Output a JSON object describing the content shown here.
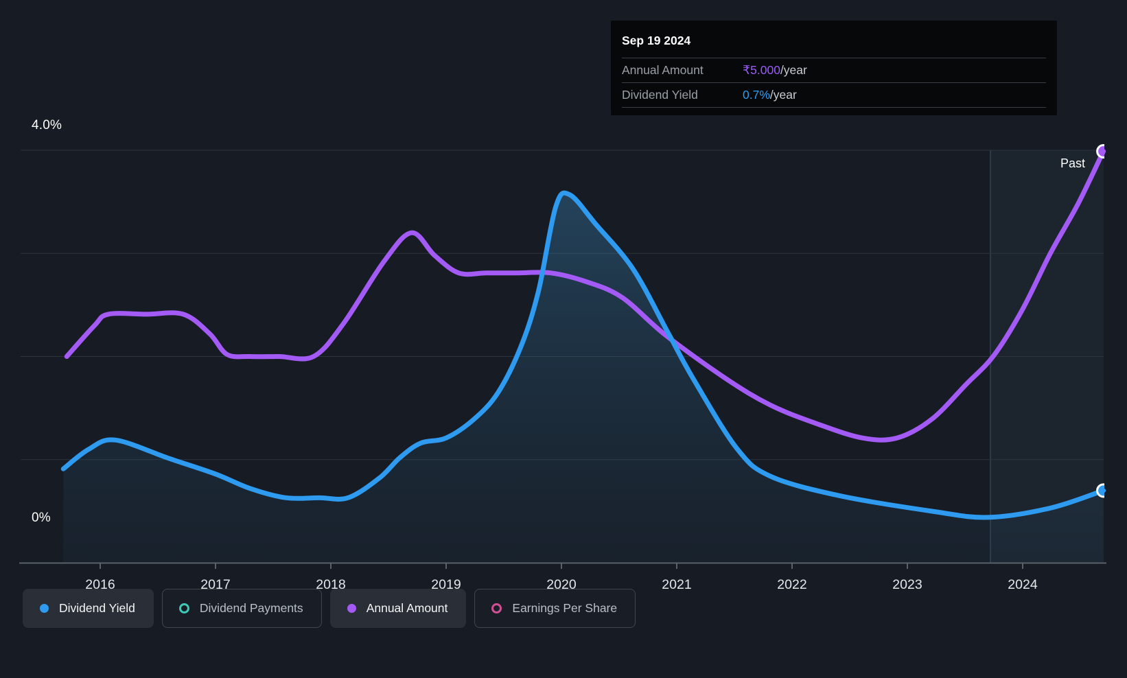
{
  "past_label": "Past",
  "tooltip": {
    "date": "Sep 19 2024",
    "rows": [
      {
        "label": "Annual Amount",
        "value": "₹5.000",
        "suffix": "/year",
        "value_color": "#9b5bff"
      },
      {
        "label": "Dividend Yield",
        "value": "0.7%",
        "suffix": "/year",
        "value_color": "#2e9bf0"
      }
    ]
  },
  "legend": {
    "items": [
      {
        "label": "Dividend Yield",
        "color": "#2e9bf0",
        "style": "filled",
        "active": true
      },
      {
        "label": "Dividend Payments",
        "color": "#3ec9b8",
        "style": "ring",
        "active": false
      },
      {
        "label": "Annual Amount",
        "color": "#a45bf5",
        "style": "filled",
        "active": true
      },
      {
        "label": "Earnings Per Share",
        "color": "#d14f94",
        "style": "ring",
        "active": false
      }
    ]
  },
  "chart_data": {
    "type": "line",
    "x_tick_labels": [
      "2016",
      "2017",
      "2018",
      "2019",
      "2020",
      "2021",
      "2022",
      "2023",
      "2024"
    ],
    "x_range": [
      2015.66,
      2024.72
    ],
    "y_axis": {
      "top_label": "4.0%",
      "bottom_label": "0%",
      "min": 0,
      "max": 4,
      "unit": "%",
      "gridline_values": [
        1,
        2,
        3,
        4
      ]
    },
    "past_band_start": 2023.72,
    "grid": true,
    "legend_position": "bottom",
    "series": [
      {
        "name": "Dividend Yield",
        "color": "#2e9bf0",
        "unit": "%",
        "area_fill": true,
        "end_marker": true,
        "latest_value": "0.7%/year",
        "points": [
          [
            2015.68,
            0.91
          ],
          [
            2015.9,
            1.1
          ],
          [
            2016.13,
            1.19
          ],
          [
            2016.6,
            1.01
          ],
          [
            2017.0,
            0.86
          ],
          [
            2017.3,
            0.72
          ],
          [
            2017.61,
            0.63
          ],
          [
            2017.9,
            0.63
          ],
          [
            2018.15,
            0.63
          ],
          [
            2018.42,
            0.82
          ],
          [
            2018.6,
            1.02
          ],
          [
            2018.78,
            1.16
          ],
          [
            2019.0,
            1.21
          ],
          [
            2019.24,
            1.39
          ],
          [
            2019.45,
            1.65
          ],
          [
            2019.65,
            2.1
          ],
          [
            2019.8,
            2.63
          ],
          [
            2019.95,
            3.45
          ],
          [
            2020.07,
            3.57
          ],
          [
            2020.3,
            3.28
          ],
          [
            2020.62,
            2.85
          ],
          [
            2020.92,
            2.24
          ],
          [
            2021.14,
            1.79
          ],
          [
            2021.52,
            1.11
          ],
          [
            2021.81,
            0.84
          ],
          [
            2022.41,
            0.65
          ],
          [
            2023.21,
            0.5
          ],
          [
            2023.7,
            0.44
          ],
          [
            2024.24,
            0.53
          ],
          [
            2024.7,
            0.7
          ]
        ]
      },
      {
        "name": "Annual Amount",
        "color": "#a45bf5",
        "unit": "chart-relative scale; latest value ₹5.000/year",
        "area_fill": false,
        "end_marker": true,
        "latest_value": "₹5.000/year",
        "points": [
          [
            2015.71,
            2.0
          ],
          [
            2015.95,
            2.3
          ],
          [
            2016.07,
            2.41
          ],
          [
            2016.4,
            2.41
          ],
          [
            2016.72,
            2.41
          ],
          [
            2016.95,
            2.22
          ],
          [
            2017.1,
            2.02
          ],
          [
            2017.3,
            2.0
          ],
          [
            2017.55,
            2.0
          ],
          [
            2017.85,
            2.0
          ],
          [
            2018.11,
            2.32
          ],
          [
            2018.46,
            2.92
          ],
          [
            2018.7,
            3.2
          ],
          [
            2018.9,
            2.98
          ],
          [
            2019.11,
            2.81
          ],
          [
            2019.35,
            2.81
          ],
          [
            2019.6,
            2.81
          ],
          [
            2019.91,
            2.81
          ],
          [
            2020.23,
            2.72
          ],
          [
            2020.53,
            2.57
          ],
          [
            2020.9,
            2.21
          ],
          [
            2021.42,
            1.79
          ],
          [
            2021.81,
            1.53
          ],
          [
            2022.21,
            1.35
          ],
          [
            2022.61,
            1.21
          ],
          [
            2022.91,
            1.21
          ],
          [
            2023.21,
            1.39
          ],
          [
            2023.51,
            1.73
          ],
          [
            2023.75,
            2.01
          ],
          [
            2024.0,
            2.46
          ],
          [
            2024.24,
            3.0
          ],
          [
            2024.48,
            3.48
          ],
          [
            2024.7,
            3.99
          ]
        ]
      }
    ]
  },
  "colors": {
    "background": "#171c24",
    "gridline": "#2e343d",
    "axis": "#5a6168",
    "tick_label": "#e4e7ea",
    "past_band_fill": "rgba(120,168,214,0.06)",
    "past_band_line": "rgba(150,190,230,0.22)",
    "tooltip_bg": "#070809"
  }
}
